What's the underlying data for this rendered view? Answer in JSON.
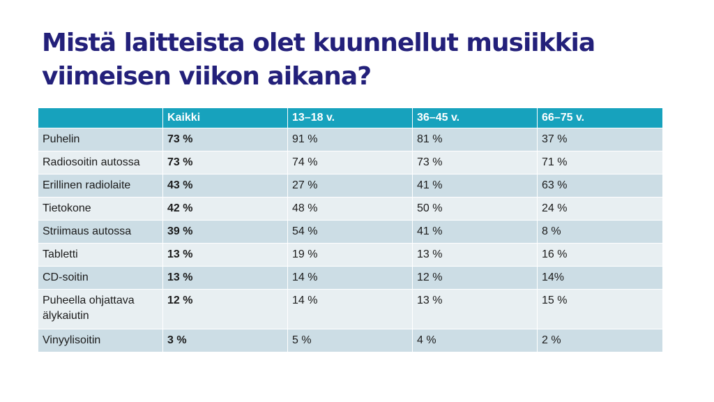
{
  "title": {
    "line1": "Mistä laitteista olet kuunnellut musiikkia",
    "line2": "viimeisen viikon aikana?"
  },
  "table": {
    "headers": [
      "",
      "Kaikki",
      "13–18 v.",
      "36–45 v.",
      "66–75 v."
    ],
    "rows": [
      [
        "Puhelin",
        "73 %",
        "91 %",
        "81 %",
        "37 %"
      ],
      [
        "Radiosoitin autossa",
        "73 %",
        "74 %",
        "73 %",
        "71 %"
      ],
      [
        "Erillinen radiolaite",
        "43 %",
        "27 %",
        "41 %",
        "63 %"
      ],
      [
        "Tietokone",
        "42 %",
        "48 %",
        "50 %",
        "24 %"
      ],
      [
        "Striimaus autossa",
        "39 %",
        "54 %",
        "41 %",
        "8 %"
      ],
      [
        "Tabletti",
        "13 %",
        "19 %",
        "13 %",
        "16 %"
      ],
      [
        "CD-soitin",
        "13 %",
        "14 %",
        "12 %",
        "14%"
      ],
      [
        "Puheella ohjattava älykaiutin",
        "12 %",
        "14 %",
        "13 %",
        "15 %"
      ],
      [
        "Vinyylisoitin",
        "3 %",
        "5 %",
        "4 %",
        "2 %"
      ]
    ]
  },
  "colors": {
    "title": "#23207a",
    "header_bg": "#17a2bd",
    "row_dark": "#ccdde5",
    "row_light": "#e8eff2"
  }
}
